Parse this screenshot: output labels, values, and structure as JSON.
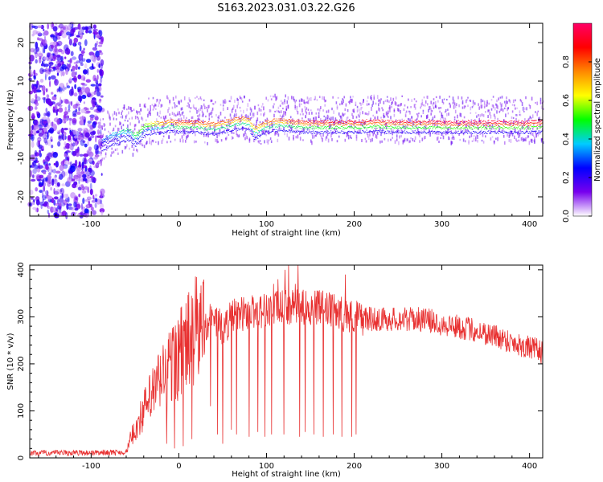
{
  "title": "S163.2023.031.03.22.G26",
  "colors": {
    "snr_line": "#e83030",
    "background": "#ffffff",
    "frame": "#000000"
  },
  "chart_data": [
    {
      "type": "heatmap",
      "xlabel": "Height of straight line (km)",
      "ylabel": "Frequency (Hz)",
      "xlim": [
        -170,
        415
      ],
      "ylim": [
        -25,
        25
      ],
      "x_ticks": [
        -100,
        0,
        100,
        200,
        300,
        400
      ],
      "x_tick_labels": [
        "-100",
        "0",
        "100",
        "200",
        "300",
        "400"
      ],
      "y_ticks": [
        -20,
        -10,
        0,
        10,
        20
      ],
      "y_tick_labels": [
        "-20",
        "-10",
        "0",
        "10",
        "20"
      ],
      "colorbar": {
        "label": "Normalized spectral amplitude",
        "range": [
          0,
          1
        ],
        "ticks": [
          0.0,
          0.2,
          0.4,
          0.6,
          0.8
        ],
        "tick_labels": [
          "0.0",
          "0.2",
          "0.4",
          "0.6",
          "0.8"
        ],
        "stops": [
          "#ffffff",
          "#7700ee",
          "#0000ff",
          "#00ccff",
          "#00ff00",
          "#ffff00",
          "#ff8800",
          "#ff0000",
          "#ff0066"
        ]
      },
      "noise_region_x": [
        -170,
        -87
      ],
      "ridge": {
        "x": [
          -88,
          -80,
          -70,
          -60,
          -55,
          -50,
          -45,
          -40,
          -35,
          -30,
          -20,
          -10,
          0,
          20,
          40,
          60,
          70,
          80,
          85,
          90,
          100,
          110,
          120,
          130,
          140,
          160,
          180,
          200,
          220,
          240,
          260,
          280,
          300,
          330,
          360,
          390,
          415
        ],
        "y": [
          -5,
          -3.5,
          -3,
          -2,
          -2.5,
          -3.5,
          -2,
          -1,
          -0.5,
          -0.3,
          0,
          0.2,
          0,
          0,
          -0.5,
          0.5,
          1,
          0.5,
          -1.5,
          -1.2,
          0,
          0.5,
          0.5,
          0.3,
          0,
          0,
          0,
          0,
          0.3,
          0,
          0,
          0,
          0,
          0,
          0,
          0,
          0
        ],
        "amplitude": [
          0.3,
          0.35,
          0.4,
          0.45,
          0.45,
          0.5,
          0.55,
          0.55,
          0.6,
          0.65,
          0.75,
          0.8,
          0.85,
          0.85,
          0.8,
          0.8,
          0.8,
          0.75,
          0.7,
          0.75,
          0.8,
          0.8,
          0.8,
          0.85,
          0.85,
          0.9,
          0.9,
          0.9,
          0.9,
          0.9,
          0.9,
          0.9,
          0.95,
          0.95,
          0.95,
          0.95,
          0.95
        ]
      }
    },
    {
      "type": "line",
      "xlabel": "Height of straight line (km)",
      "ylabel": "SNR (10 * v/v)",
      "xlim": [
        -170,
        415
      ],
      "ylim": [
        0,
        410
      ],
      "x_ticks": [
        -100,
        0,
        100,
        200,
        300,
        400
      ],
      "x_tick_labels": [
        "-100",
        "0",
        "100",
        "200",
        "300",
        "400"
      ],
      "y_ticks": [
        0,
        100,
        200,
        300,
        400
      ],
      "y_tick_labels": [
        "0",
        "100",
        "200",
        "300",
        "400"
      ],
      "envelope": {
        "x": [
          -170,
          -60,
          -55,
          -40,
          -20,
          0,
          20,
          40,
          50,
          60,
          80,
          100,
          120,
          140,
          160,
          180,
          200,
          220,
          250,
          280,
          300,
          330,
          360,
          390,
          415
        ],
        "y": [
          10,
          12,
          40,
          100,
          170,
          220,
          270,
          300,
          270,
          300,
          310,
          315,
          320,
          320,
          320,
          310,
          300,
          295,
          295,
          295,
          285,
          275,
          260,
          240,
          225
        ]
      },
      "dropouts": [
        {
          "x": -14,
          "y": 30
        },
        {
          "x": -5,
          "y": 20
        },
        {
          "x": 5,
          "y": 25
        },
        {
          "x": 15,
          "y": 40
        },
        {
          "x": 36,
          "y": 110
        },
        {
          "x": 44,
          "y": 50
        },
        {
          "x": 50,
          "y": 30
        },
        {
          "x": 60,
          "y": 60
        },
        {
          "x": 66,
          "y": 50
        },
        {
          "x": 80,
          "y": 45
        },
        {
          "x": 90,
          "y": 55
        },
        {
          "x": 98,
          "y": 45
        },
        {
          "x": 106,
          "y": 50
        },
        {
          "x": 120,
          "y": 50
        },
        {
          "x": 138,
          "y": 45
        },
        {
          "x": 144,
          "y": 55
        },
        {
          "x": 154,
          "y": 50
        },
        {
          "x": 165,
          "y": 45
        },
        {
          "x": 176,
          "y": 50
        },
        {
          "x": 186,
          "y": 45
        },
        {
          "x": 197,
          "y": 45
        },
        {
          "x": 202,
          "y": 50
        }
      ],
      "spikes": [
        {
          "x": 108,
          "y": 370
        },
        {
          "x": 113,
          "y": 380
        },
        {
          "x": 121,
          "y": 400
        },
        {
          "x": 125,
          "y": 410
        },
        {
          "x": 133,
          "y": 370
        },
        {
          "x": 136,
          "y": 415
        },
        {
          "x": 190,
          "y": 390
        }
      ]
    }
  ]
}
